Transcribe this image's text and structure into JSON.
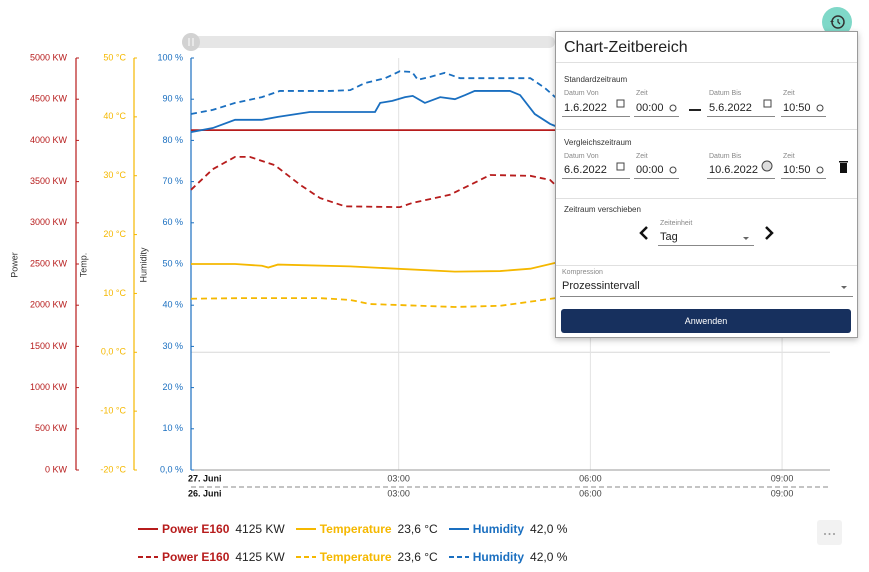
{
  "chart_data": {
    "type": "line",
    "xlim": [
      -0.25,
      9.75
    ],
    "xticks": [
      {
        "value": 3,
        "label": "03:00"
      },
      {
        "value": 6,
        "label": "06:00"
      },
      {
        "value": 9,
        "label": "09:00"
      }
    ],
    "x_dates": [
      "27. Juni",
      "26. Juni"
    ],
    "ylabel": "Power",
    "ycolor": "#b71c1c",
    "ylim": [
      0,
      5000
    ],
    "yticks": [
      {
        "value": 0,
        "label": "0 KW"
      },
      {
        "value": 500,
        "label": "500 KW"
      },
      {
        "value": 1000,
        "label": "1000 KW"
      },
      {
        "value": 1500,
        "label": "1500 KW"
      },
      {
        "value": 2000,
        "label": "2000 KW"
      },
      {
        "value": 2500,
        "label": "2500 KW"
      },
      {
        "value": 3000,
        "label": "3000 KW"
      },
      {
        "value": 3500,
        "label": "3500 KW"
      },
      {
        "value": 4000,
        "label": "4000 KW"
      },
      {
        "value": 4500,
        "label": "4500 KW"
      },
      {
        "value": 5000,
        "label": "5000 KW"
      }
    ],
    "y2label": "Temp.",
    "y2color": "#f5b800",
    "y2lim": [
      -20,
      50
    ],
    "y2ticks": [
      {
        "value": -20,
        "label": "-20 °C"
      },
      {
        "value": -10,
        "label": "-10 °C"
      },
      {
        "value": 0,
        "label": "0,0 °C"
      },
      {
        "value": 10,
        "label": "10 °C"
      },
      {
        "value": 20,
        "label": "20 °C"
      },
      {
        "value": 30,
        "label": "30 °C"
      },
      {
        "value": 40,
        "label": "40 °C"
      },
      {
        "value": 50,
        "label": "50 °C"
      }
    ],
    "y3label": "Humidity",
    "y3color": "#1a6fc0",
    "y3lim": [
      0,
      100
    ],
    "y3ticks": [
      {
        "value": 0,
        "label": "0,0 %"
      },
      {
        "value": 10,
        "label": "10 %"
      },
      {
        "value": 20,
        "label": "20 %"
      },
      {
        "value": 30,
        "label": "30 %"
      },
      {
        "value": 40,
        "label": "40 %"
      },
      {
        "value": 50,
        "label": "50 %"
      },
      {
        "value": 60,
        "label": "60 %"
      },
      {
        "value": 70,
        "label": "70 %"
      },
      {
        "value": 80,
        "label": "80 %"
      },
      {
        "value": 90,
        "label": "90 %"
      },
      {
        "value": 100,
        "label": "100 %"
      }
    ],
    "series": [
      {
        "name": "Power E160",
        "color": "#b71c1c",
        "axis": "y",
        "dash": false,
        "current": {
          "value": 4125,
          "label": "4125 KW"
        },
        "x": [
          -0.25,
          5.45
        ],
        "values": [
          4125,
          4125
        ]
      },
      {
        "name": "Temperature",
        "color": "#f5b800",
        "axis": "y2",
        "dash": false,
        "current": {
          "value": 23.6,
          "label": "23,6 °C"
        },
        "x": [
          -0.25,
          0.44,
          0.86,
          0.96,
          1.11,
          2.24,
          3.88,
          4.59,
          5.06,
          5.45
        ],
        "values": [
          15.0,
          15.0,
          14.7,
          14.4,
          14.9,
          14.6,
          13.7,
          13.8,
          14.2,
          15.2
        ]
      },
      {
        "name": "Humidity",
        "color": "#1a6fc0",
        "axis": "y3",
        "dash": false,
        "current": {
          "value": 42.0,
          "label": "42,0 %"
        },
        "x": [
          -0.25,
          0.09,
          0.44,
          0.86,
          1.11,
          1.61,
          2.63,
          2.71,
          2.9,
          3.1,
          3.22,
          3.41,
          3.65,
          3.88,
          4.04,
          4.19,
          4.74,
          4.9,
          5.13,
          5.37,
          5.45
        ],
        "values": [
          82.0,
          83.0,
          85.0,
          85.0,
          85.7,
          86.9,
          86.9,
          89.1,
          89.6,
          90.5,
          90.8,
          89.1,
          90.5,
          90.0,
          91.0,
          92.0,
          92.0,
          91.0,
          86.4,
          84.0,
          83.5
        ]
      },
      {
        "name": "Power E160",
        "color": "#b71c1c",
        "axis": "y",
        "dash": true,
        "current": {
          "value": 4125,
          "label": "4125 KW"
        },
        "x": [
          -0.25,
          0.09,
          0.44,
          0.67,
          1.06,
          1.46,
          1.77,
          2.16,
          3.02,
          3.21,
          3.8,
          4.12,
          4.43,
          5.06,
          5.37,
          5.45
        ],
        "values": [
          3400,
          3650,
          3800,
          3800,
          3700,
          3460,
          3300,
          3200,
          3190,
          3240,
          3340,
          3460,
          3580,
          3570,
          3520,
          3460
        ]
      },
      {
        "name": "Temperature",
        "color": "#f5b800",
        "axis": "y2",
        "dash": true,
        "current": {
          "value": 23.6,
          "label": "23,6 °C"
        },
        "x": [
          -0.25,
          0.52,
          1.77,
          2.24,
          2.55,
          3.88,
          4.59,
          5.06,
          5.45
        ],
        "values": [
          9.1,
          9.2,
          9.2,
          8.9,
          8.2,
          7.7,
          7.9,
          8.6,
          9.2
        ]
      },
      {
        "name": "Humidity",
        "color": "#1a6fc0",
        "axis": "y3",
        "dash": true,
        "current": {
          "value": 42.0,
          "label": "42,0 %"
        },
        "x": [
          -0.25,
          0.09,
          0.44,
          0.86,
          1.14,
          1.93,
          2.24,
          2.47,
          2.79,
          3.02,
          3.21,
          3.3,
          3.49,
          3.72,
          3.96,
          5.06,
          5.29,
          5.45
        ],
        "values": [
          86.4,
          87.4,
          89.1,
          90.5,
          92.0,
          92.0,
          92.2,
          93.9,
          95.1,
          96.8,
          96.6,
          94.7,
          95.4,
          96.4,
          95.1,
          95.1,
          92.7,
          90.5
        ]
      }
    ]
  },
  "panel": {
    "title": "Chart-Zeitbereich",
    "standard": {
      "heading": "Standardzeitraum",
      "from_date": {
        "label": "Datum Von",
        "value": "1.6.2022"
      },
      "from_time": {
        "label": "Zeit",
        "value": "00:00"
      },
      "to_date": {
        "label": "Datum Bis",
        "value": "5.6.2022"
      },
      "to_time": {
        "label": "Zeit",
        "value": "10:50"
      }
    },
    "comparison": {
      "heading": "Vergleichszeitraum",
      "from_date": {
        "label": "Datum Von",
        "value": "6.6.2022"
      },
      "from_time": {
        "label": "Zeit",
        "value": "00:00"
      },
      "to_date": {
        "label": "Datum Bis",
        "value": "10.6.2022"
      },
      "to_time": {
        "label": "Zeit",
        "value": "10:50"
      }
    },
    "shift": {
      "heading": "Zeitraum verschieben",
      "unit_label": "Zeiteinheit",
      "unit_value": "Tag"
    },
    "compression": {
      "label": "Kompression",
      "value": "Prozessintervall"
    },
    "button": "Anwenden"
  }
}
